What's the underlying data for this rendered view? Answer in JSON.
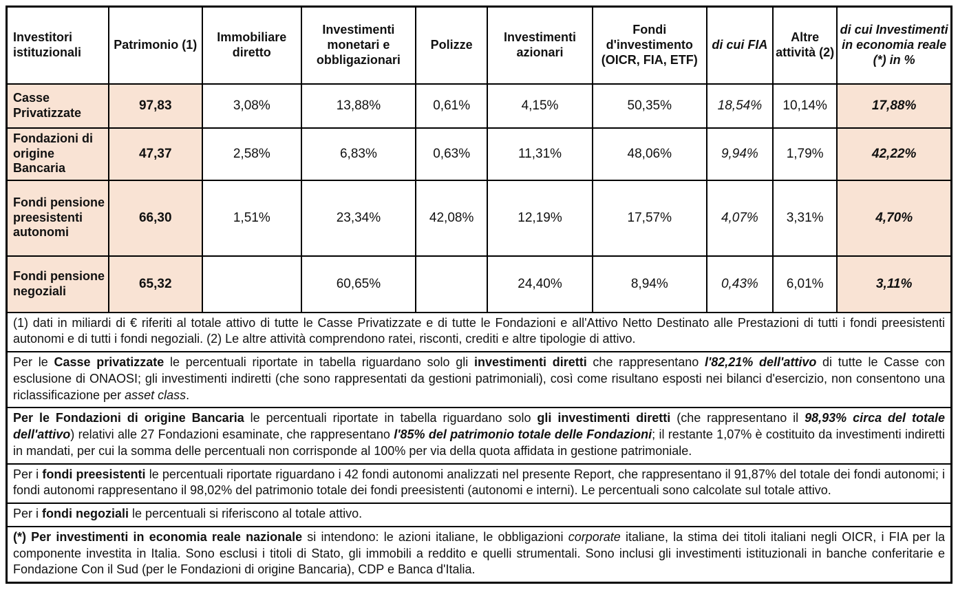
{
  "colors": {
    "peach": "#f9e3d4",
    "border": "#000000",
    "text": "#111111"
  },
  "table": {
    "headers": [
      "Investitori istituzionali",
      "Patrimonio (1)",
      "Immobiliare diretto",
      "Investimenti monetari e obbligazionari",
      "Polizze",
      "Investimenti azionari",
      "Fondi d'investimento (OICR, FIA, ETF)",
      "di cui FIA",
      "Altre attività (2)",
      "di cui Investimenti in economia reale (*) in %"
    ],
    "rows": [
      {
        "label": "Casse Privatizzate",
        "cells": [
          "97,83",
          "3,08%",
          "13,88%",
          "0,61%",
          "4,15%",
          "50,35%",
          "18,54%",
          "10,14%",
          "17,88%"
        ]
      },
      {
        "label": "Fondazioni di origine Bancaria",
        "cells": [
          "47,37",
          "2,58%",
          "6,83%",
          "0,63%",
          "11,31%",
          "48,06%",
          "9,94%",
          "1,79%",
          "42,22%"
        ]
      },
      {
        "label": "Fondi pensione preesistenti autonomi",
        "cells": [
          "66,30",
          "1,51%",
          "23,34%",
          "42,08%",
          "12,19%",
          "17,57%",
          "4,07%",
          "3,31%",
          "4,70%"
        ]
      },
      {
        "label": "Fondi pensione negoziali",
        "cells": [
          "65,32",
          "",
          "60,65%",
          "",
          "24,40%",
          "8,94%",
          "0,43%",
          "6,01%",
          "3,11%"
        ]
      }
    ]
  },
  "footnotes": [
    {
      "segments": [
        {
          "t": "(1) dati in miliardi di € riferiti al totale attivo di tutte le Casse Privatizzate e di tutte le Fondazioni e all'Attivo Netto Destinato alle Prestazioni di tutti i fondi preesistenti autonomi e di tutti i fondi negoziali. (2) Le altre attività comprendono ratei, risconti, crediti e altre tipologie di attivo.",
          "b": false,
          "i": false
        }
      ]
    },
    {
      "segments": [
        {
          "t": "Per le ",
          "b": false,
          "i": false
        },
        {
          "t": "Casse privatizzate",
          "b": true,
          "i": false
        },
        {
          "t": " le percentuali riportate in tabella riguardano solo gli ",
          "b": false,
          "i": false
        },
        {
          "t": "investimenti diretti",
          "b": true,
          "i": false
        },
        {
          "t": " che rappresentano ",
          "b": false,
          "i": false
        },
        {
          "t": "l'82,21% dell'attivo",
          "b": true,
          "i": true
        },
        {
          "t": " di tutte le Casse con esclusione di ONAOSI; gli investimenti indiretti (che sono rappresentati da gestioni patrimoniali), così come risultano esposti nei bilanci d'esercizio, non consentono una riclassificazione per ",
          "b": false,
          "i": false
        },
        {
          "t": "asset class",
          "b": false,
          "i": true
        },
        {
          "t": ".",
          "b": false,
          "i": false
        }
      ]
    },
    {
      "segments": [
        {
          "t": "Per le Fondazioni di origine Bancaria",
          "b": true,
          "i": false
        },
        {
          "t": " le percentuali riportate in tabella riguardano solo ",
          "b": false,
          "i": false
        },
        {
          "t": "gli investimenti diretti",
          "b": true,
          "i": false
        },
        {
          "t": " (che rappresentano il ",
          "b": false,
          "i": false
        },
        {
          "t": "98,93% circa del totale dell'attivo",
          "b": true,
          "i": true
        },
        {
          "t": ") relativi alle 27 Fondazioni esaminate, che rappresentano ",
          "b": false,
          "i": false
        },
        {
          "t": "l'85% del patrimonio totale delle Fondazioni",
          "b": true,
          "i": true
        },
        {
          "t": "; il restante 1,07% è costituito da investimenti indiretti in mandati, per cui la somma delle percentuali non corrisponde al 100% per via della quota affidata in gestione patrimoniale.",
          "b": false,
          "i": false
        }
      ]
    },
    {
      "segments": [
        {
          "t": "Per i ",
          "b": false,
          "i": false
        },
        {
          "t": "fondi preesistenti",
          "b": true,
          "i": false
        },
        {
          "t": " le percentuali riportate riguardano i 42 fondi autonomi analizzati nel presente Report, che rappresentano il 91,87% del totale dei fondi autonomi; i fondi autonomi rappresentano il 98,02% del patrimonio totale dei fondi preesistenti (autonomi e interni). Le percentuali sono calcolate sul totale attivo.",
          "b": false,
          "i": false
        }
      ]
    },
    {
      "segments": [
        {
          "t": "Per i ",
          "b": false,
          "i": false
        },
        {
          "t": "fondi negoziali",
          "b": true,
          "i": false
        },
        {
          "t": " le percentuali si riferiscono al totale attivo.",
          "b": false,
          "i": false
        }
      ]
    },
    {
      "segments": [
        {
          "t": "(*) Per investimenti in economia reale nazionale",
          "b": true,
          "i": false
        },
        {
          "t": " si intendono: le azioni italiane, le obbligazioni ",
          "b": false,
          "i": false
        },
        {
          "t": "corporate",
          "b": false,
          "i": true
        },
        {
          "t": " italiane, la stima dei titoli italiani negli OICR, i FIA per la componente investita in Italia. Sono esclusi i titoli di Stato, gli immobili a reddito e quelli strumentali. Sono inclusi gli investimenti istituzionali in banche conferitarie e Fondazione Con il Sud (per le Fondazioni di origine Bancaria), CDP e Banca d'Italia.",
          "b": false,
          "i": false
        }
      ]
    }
  ]
}
